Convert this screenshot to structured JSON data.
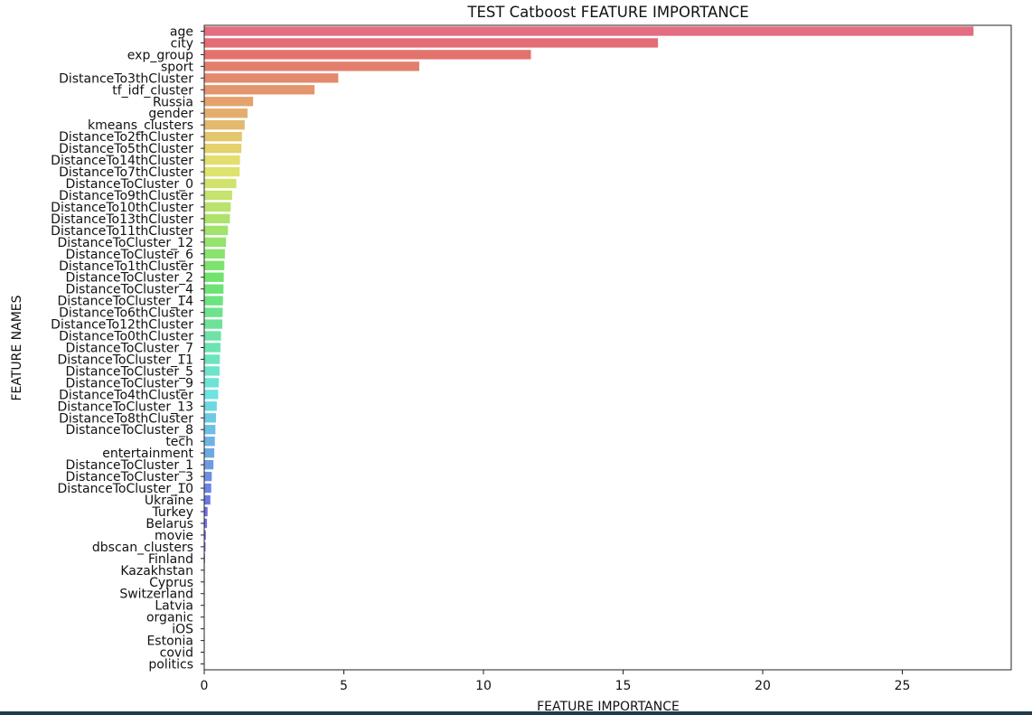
{
  "chart_data": {
    "type": "bar",
    "orientation": "horizontal",
    "title": "TEST Catboost FEATURE IMPORTANCE",
    "xlabel": "FEATURE IMPORTANCE",
    "ylabel": "FEATURE NAMES",
    "xlim": [
      0,
      28.9
    ],
    "xticks": [
      0,
      5,
      10,
      15,
      20,
      25
    ],
    "grid": false,
    "legend": "none",
    "categories": [
      "age",
      "city",
      "exp_group",
      "sport",
      "DistanceTo3thCluster",
      "tf_idf_cluster",
      "Russia",
      "gender",
      "kmeans_clusters",
      "DistanceTo2thCluster",
      "DistanceTo5thCluster",
      "DistanceTo14thCluster",
      "DistanceTo7thCluster",
      "DistanceToCluster_0",
      "DistanceTo9thCluster",
      "DistanceTo10thCluster",
      "DistanceTo13thCluster",
      "DistanceTo11thCluster",
      "DistanceToCluster_12",
      "DistanceToCluster_6",
      "DistanceTo1thCluster",
      "DistanceToCluster_2",
      "DistanceToCluster_4",
      "DistanceToCluster_14",
      "DistanceTo6thCluster",
      "DistanceTo12thCluster",
      "DistanceTo0thCluster",
      "DistanceToCluster_7",
      "DistanceToCluster_11",
      "DistanceToCluster_5",
      "DistanceToCluster_9",
      "DistanceTo4thCluster",
      "DistanceToCluster_13",
      "DistanceTo8thCluster",
      "DistanceToCluster_8",
      "tech",
      "entertainment",
      "DistanceToCluster_1",
      "DistanceToCluster_3",
      "DistanceToCluster_10",
      "Ukraine",
      "Turkey",
      "Belarus",
      "movie",
      "dbscan_clusters",
      "Finland",
      "Kazakhstan",
      "Cyprus",
      "Switzerland",
      "Latvia",
      "organic",
      "iOS",
      "Estonia",
      "covid",
      "politics"
    ],
    "values": [
      27.55,
      16.25,
      11.7,
      7.7,
      4.8,
      3.95,
      1.75,
      1.55,
      1.45,
      1.35,
      1.33,
      1.28,
      1.27,
      1.15,
      1.0,
      0.95,
      0.92,
      0.85,
      0.78,
      0.74,
      0.72,
      0.7,
      0.69,
      0.67,
      0.66,
      0.65,
      0.6,
      0.58,
      0.56,
      0.55,
      0.52,
      0.5,
      0.45,
      0.42,
      0.4,
      0.38,
      0.36,
      0.33,
      0.27,
      0.25,
      0.22,
      0.12,
      0.1,
      0.06,
      0.05,
      0.03,
      0.02,
      0.02,
      0.02,
      0.02,
      0.01,
      0.01,
      0.01,
      0.01,
      0.01
    ]
  }
}
